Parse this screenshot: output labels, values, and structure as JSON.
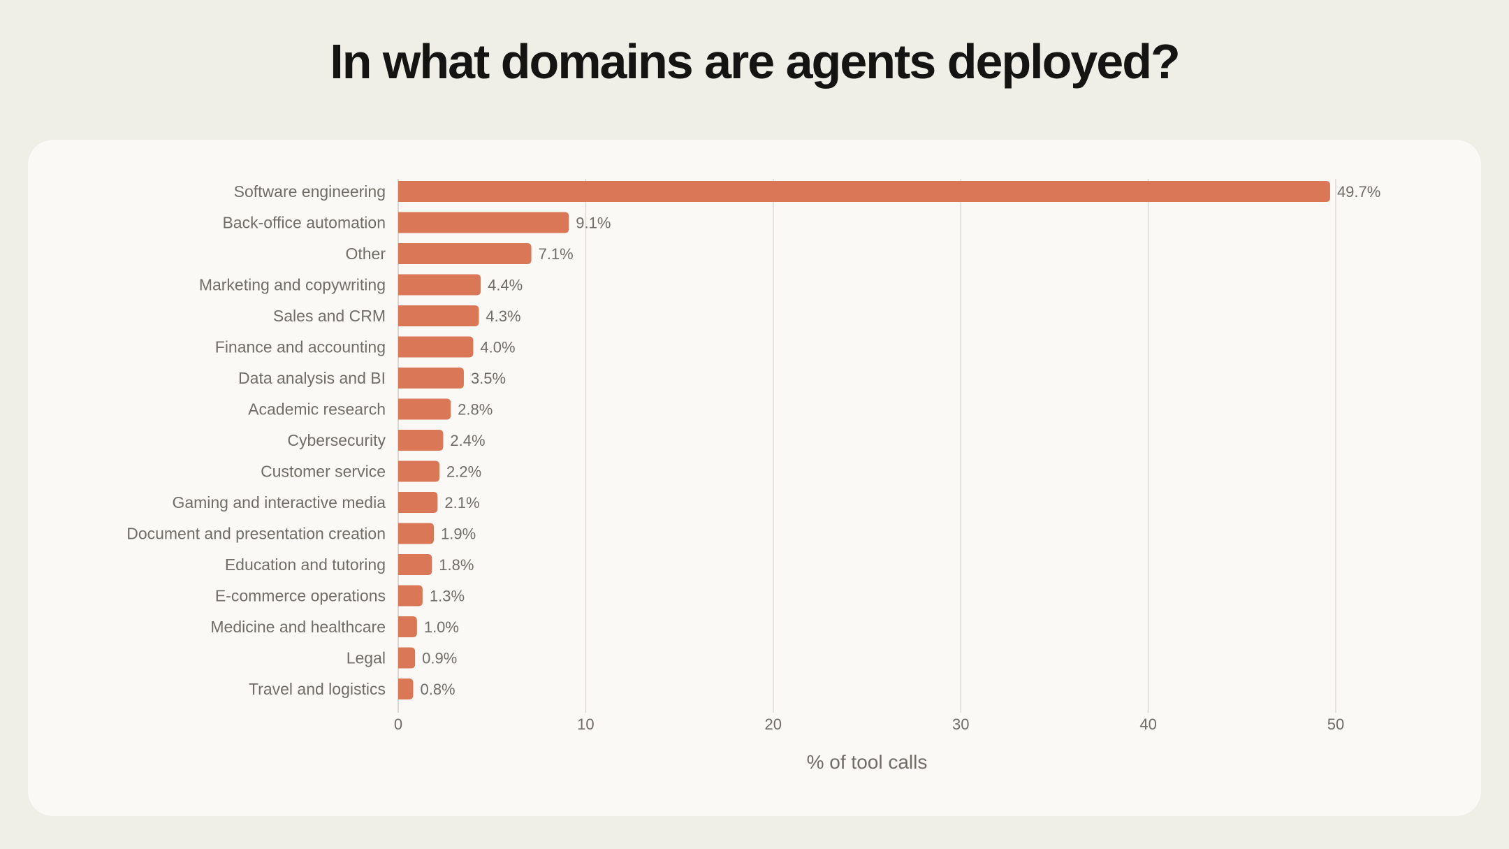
{
  "title": "In what domains are agents deployed?",
  "colors": {
    "background": "#f0efe7",
    "card": "#faf9f5",
    "bar": "#d97757",
    "text": "#6f6d66",
    "grid": "#dcdad2",
    "title": "#141413"
  },
  "chart_data": {
    "type": "bar",
    "orientation": "horizontal",
    "title": "In what domains are agents deployed?",
    "xlabel": "% of tool calls",
    "ylabel": "",
    "xlim": [
      0,
      50
    ],
    "xticks": [
      "0",
      "10",
      "20",
      "30",
      "40",
      "50"
    ],
    "grid": true,
    "categories": [
      "Software engineering",
      "Back-office automation",
      "Other",
      "Marketing and copywriting",
      "Sales and CRM",
      "Finance and accounting",
      "Data analysis and BI",
      "Academic research",
      "Cybersecurity",
      "Customer service",
      "Gaming and interactive media",
      "Document and presentation creation",
      "Education and tutoring",
      "E-commerce operations",
      "Medicine and healthcare",
      "Legal",
      "Travel and logistics"
    ],
    "values": [
      49.7,
      9.1,
      7.1,
      4.4,
      4.3,
      4.0,
      3.5,
      2.8,
      2.4,
      2.2,
      2.1,
      1.9,
      1.8,
      1.3,
      1.0,
      0.9,
      0.8
    ],
    "labels": [
      "49.7%",
      "9.1%",
      "7.1%",
      "4.4%",
      "4.3%",
      "4.0%",
      "3.5%",
      "2.8%",
      "2.4%",
      "2.2%",
      "2.1%",
      "1.9%",
      "1.8%",
      "1.3%",
      "1.0%",
      "0.9%",
      "0.8%"
    ]
  }
}
